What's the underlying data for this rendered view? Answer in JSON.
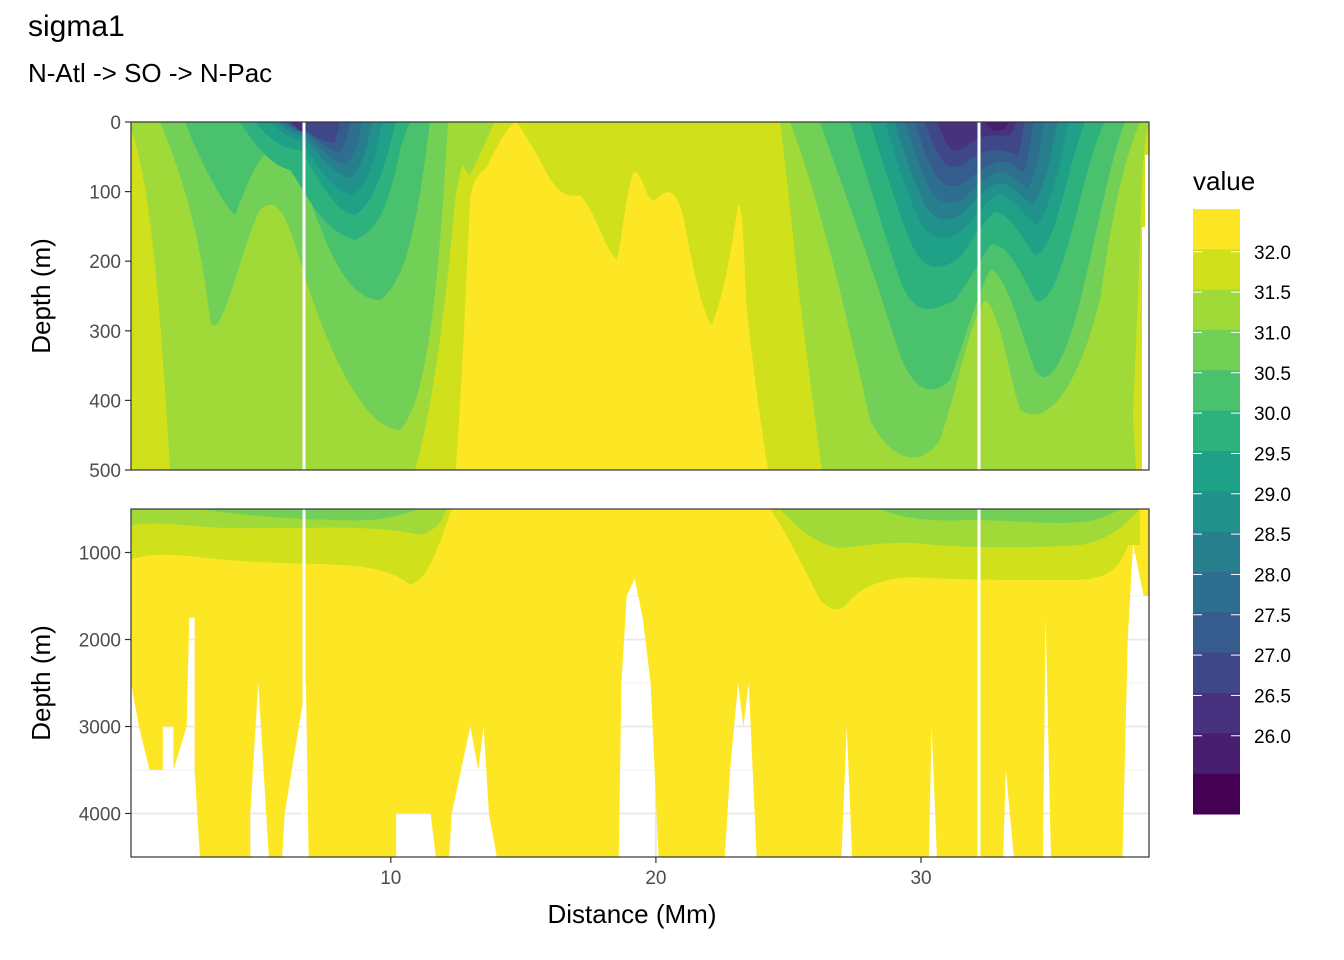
{
  "chart_data": {
    "type": "heatmap",
    "title": "sigma1",
    "subtitle": "N-Atl -> SO -> N-Pac",
    "xlabel": "Distance (Mm)",
    "ylabel": "Depth (m)",
    "x_ticks": [
      "10",
      "20",
      "30"
    ],
    "x_tick_values": [
      10,
      20,
      30
    ],
    "xlim": [
      0.2,
      38.6
    ],
    "panels": [
      {
        "name": "upper",
        "ylim": [
          0,
          500
        ],
        "y_ticks": [
          "0",
          "100",
          "200",
          "300",
          "400",
          "500"
        ],
        "y_tick_values": [
          0,
          100,
          200,
          300,
          400,
          500
        ]
      },
      {
        "name": "lower",
        "ylim": [
          500,
          4500
        ],
        "y_ticks": [
          "1000",
          "2000",
          "3000",
          "4000"
        ],
        "y_tick_values": [
          1000,
          2000,
          3000,
          4000
        ]
      }
    ],
    "section_markers_x": [
      6.7,
      32.2
    ],
    "legend": {
      "title": "value",
      "position": "right",
      "labels": [
        "32.0",
        "31.5",
        "31.0",
        "30.5",
        "30.0",
        "29.5",
        "29.0",
        "28.5",
        "28.0",
        "27.5",
        "27.0",
        "26.5",
        "26.0"
      ],
      "colors": [
        "#fde725",
        "#d0e11c",
        "#a0da39",
        "#73d056",
        "#4ac16d",
        "#2db27d",
        "#1fa187",
        "#21918c",
        "#277f8e",
        "#2e6e8e",
        "#365c8d",
        "#3f4788",
        "#46327e",
        "#481f70",
        "#440154"
      ]
    },
    "grid": true
  },
  "axis_labels": {
    "x": "Distance (Mm)",
    "y_upper": "Depth (m)",
    "y_lower": "Depth (m)"
  }
}
